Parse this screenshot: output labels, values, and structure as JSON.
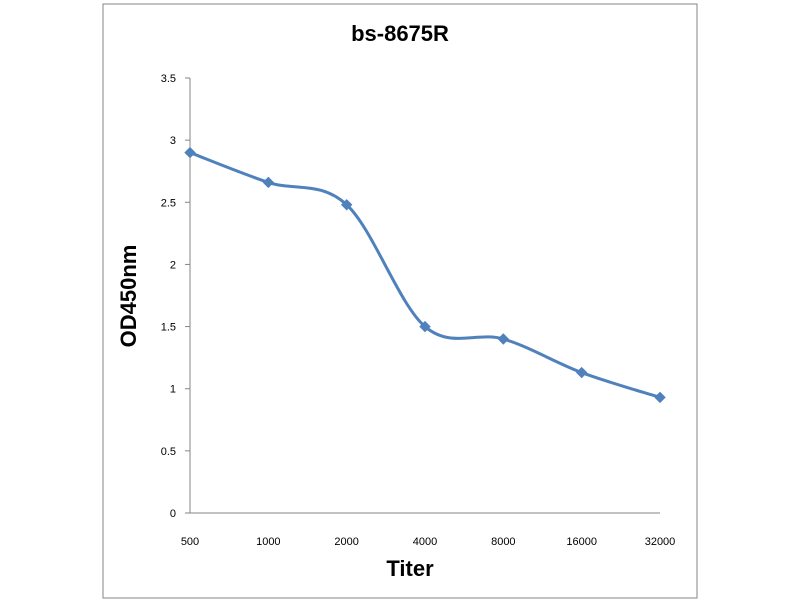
{
  "chart_data": {
    "type": "line",
    "title": "bs-8675R",
    "xlabel": "Titer",
    "ylabel": "OD450nm",
    "categories": [
      "500",
      "1000",
      "2000",
      "4000",
      "8000",
      "16000",
      "32000"
    ],
    "series": [
      {
        "values": [
          2.9,
          2.66,
          2.48,
          1.5,
          1.4,
          1.13,
          0.93
        ]
      }
    ],
    "yticks": [
      "0",
      "0.5",
      "1",
      "1.5",
      "2",
      "2.5",
      "3",
      "3.5"
    ],
    "ylim": [
      0,
      3.5
    ],
    "grid": false,
    "legend": "none",
    "smooth": true
  },
  "colors": {
    "line": "#4f81bd",
    "marker": "#4f81bd",
    "axis": "#868686",
    "frame": "#868686"
  }
}
